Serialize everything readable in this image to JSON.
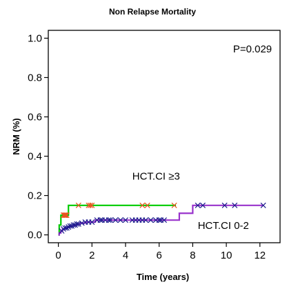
{
  "chart_data": {
    "type": "line",
    "title": "Non Relapse Mortality",
    "xlabel": "Time (years)",
    "ylabel": "NRM (%)",
    "xlim": [
      -0.6,
      13.2
    ],
    "ylim": [
      -0.04,
      1.04
    ],
    "x_ticks": [
      0,
      2,
      4,
      6,
      8,
      10,
      12
    ],
    "x_tick_labels": [
      "0",
      "2",
      "4",
      "6",
      "8",
      "10",
      "12"
    ],
    "y_ticks": [
      0.0,
      0.2,
      0.4,
      0.6,
      0.8,
      1.0
    ],
    "y_tick_labels": [
      "0.0",
      "0.2",
      "0.4",
      "0.6",
      "0.8",
      "1.0"
    ],
    "grid": false,
    "p_value_label": "P=0.029",
    "series": [
      {
        "name": "HCT.CI ≥3",
        "color": "#00cc00",
        "censor_color": "#e8541e",
        "steps": [
          [
            0,
            0.0
          ],
          [
            0.05,
            0.05
          ],
          [
            0.15,
            0.1
          ],
          [
            0.6,
            0.15
          ],
          [
            7.0,
            0.15
          ]
        ],
        "censored_x": [
          0.3,
          0.35,
          0.4,
          0.45,
          0.5,
          1.2,
          1.8,
          1.9,
          2.0,
          5.0,
          5.3,
          6.9
        ]
      },
      {
        "name": "HCT.CI 0-2",
        "color": "#9933cc",
        "censor_color": "#1a1a8c",
        "steps": [
          [
            0,
            0.0
          ],
          [
            0.05,
            0.01
          ],
          [
            0.15,
            0.02
          ],
          [
            0.25,
            0.03
          ],
          [
            0.4,
            0.035
          ],
          [
            0.55,
            0.04
          ],
          [
            0.7,
            0.045
          ],
          [
            0.9,
            0.05
          ],
          [
            1.1,
            0.055
          ],
          [
            1.3,
            0.06
          ],
          [
            1.6,
            0.065
          ],
          [
            2.2,
            0.075
          ],
          [
            7.2,
            0.11
          ],
          [
            8.0,
            0.15
          ],
          [
            12.2,
            0.15
          ]
        ],
        "censored_x": [
          0.2,
          0.3,
          0.4,
          0.5,
          0.6,
          0.7,
          0.8,
          0.9,
          1.0,
          1.1,
          1.2,
          1.4,
          1.6,
          1.8,
          2.0,
          2.3,
          2.5,
          2.6,
          2.8,
          3.0,
          3.1,
          3.4,
          3.7,
          4.0,
          4.4,
          4.6,
          4.8,
          5.0,
          5.2,
          5.5,
          5.8,
          6.0,
          6.1,
          6.3,
          8.3,
          8.6,
          9.9,
          10.5,
          12.2
        ]
      }
    ],
    "annotations": [
      {
        "text": "HCT.CI ≥3",
        "x": 4.4,
        "y": 0.28
      },
      {
        "text": "HCT.CI 0-2",
        "x": 8.3,
        "y": 0.03
      }
    ]
  }
}
